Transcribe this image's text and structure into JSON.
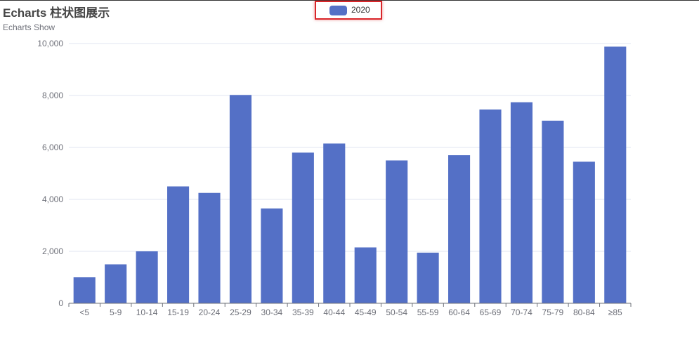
{
  "title": "Echarts 柱状图展示",
  "subtitle": "Echarts Show",
  "legend": {
    "label": "2020",
    "highlighted": true,
    "highlight_color": "#d9262a"
  },
  "colors": {
    "bar": "#5470c6",
    "axis": "#6e7079",
    "grid": "#e0e6f1"
  },
  "chart_data": {
    "type": "bar",
    "title": "Echarts 柱状图展示",
    "subtitle": "Echarts Show",
    "categories": [
      "<5",
      "5-9",
      "10-14",
      "15-19",
      "20-24",
      "25-29",
      "30-34",
      "35-39",
      "40-44",
      "45-49",
      "50-54",
      "55-59",
      "60-64",
      "65-69",
      "70-74",
      "75-79",
      "80-84",
      "≥85"
    ],
    "series": [
      {
        "name": "2020",
        "values": [
          1000,
          1500,
          2000,
          4500,
          4250,
          8020,
          3650,
          5800,
          6150,
          2150,
          5500,
          1950,
          5700,
          7460,
          7740,
          7030,
          5450,
          9880
        ]
      }
    ],
    "xlabel": "",
    "ylabel": "",
    "ylim": [
      0,
      10000
    ],
    "yticks": [
      0,
      2000,
      4000,
      6000,
      8000,
      10000
    ],
    "ytick_labels": [
      "0",
      "2,000",
      "4,000",
      "6,000",
      "8,000",
      "10,000"
    ],
    "grid": true,
    "legend_position": "top-center"
  }
}
